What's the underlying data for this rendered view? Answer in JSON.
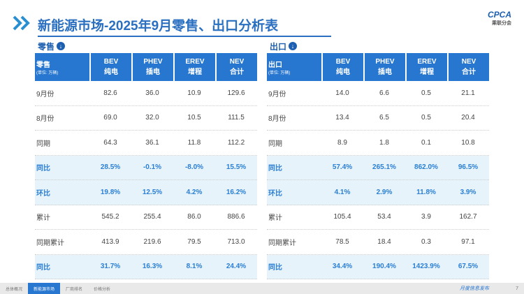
{
  "header": {
    "title": "新能源市场-2025年9月零售、出口分析表",
    "logo": "CPCA",
    "logo_sub": "乘联分会"
  },
  "tables": [
    {
      "label": "零售",
      "unit": "(单位: 万辆)",
      "columns": [
        {
          "code": "BEV",
          "name": "纯电"
        },
        {
          "code": "PHEV",
          "name": "插电"
        },
        {
          "code": "EREV",
          "name": "增程"
        },
        {
          "code": "NEV",
          "name": "合计"
        }
      ],
      "rows": [
        {
          "name": "9月份",
          "cells": [
            "82.6",
            "36.0",
            "10.9",
            "129.6"
          ],
          "highlight": false
        },
        {
          "name": "8月份",
          "cells": [
            "69.0",
            "32.0",
            "10.5",
            "111.5"
          ],
          "highlight": false
        },
        {
          "name": "同期",
          "cells": [
            "64.3",
            "36.1",
            "11.8",
            "112.2"
          ],
          "highlight": false
        },
        {
          "name": "同比",
          "cells": [
            "28.5%",
            "-0.1%",
            "-8.0%",
            "15.5%"
          ],
          "highlight": true
        },
        {
          "name": "环比",
          "cells": [
            "19.8%",
            "12.5%",
            "4.2%",
            "16.2%"
          ],
          "highlight": true
        },
        {
          "name": "累计",
          "cells": [
            "545.2",
            "255.4",
            "86.0",
            "886.6"
          ],
          "highlight": false
        },
        {
          "name": "同期累计",
          "cells": [
            "413.9",
            "219.6",
            "79.5",
            "713.0"
          ],
          "highlight": false
        },
        {
          "name": "同比",
          "cells": [
            "31.7%",
            "16.3%",
            "8.1%",
            "24.4%"
          ],
          "highlight": true
        }
      ]
    },
    {
      "label": "出口",
      "unit": "(单位: 万辆)",
      "columns": [
        {
          "code": "BEV",
          "name": "纯电"
        },
        {
          "code": "PHEV",
          "name": "插电"
        },
        {
          "code": "EREV",
          "name": "增程"
        },
        {
          "code": "NEV",
          "name": "合计"
        }
      ],
      "rows": [
        {
          "name": "9月份",
          "cells": [
            "14.0",
            "6.6",
            "0.5",
            "21.1"
          ],
          "highlight": false
        },
        {
          "name": "8月份",
          "cells": [
            "13.4",
            "6.5",
            "0.5",
            "20.4"
          ],
          "highlight": false
        },
        {
          "name": "同期",
          "cells": [
            "8.9",
            "1.8",
            "0.1",
            "10.8"
          ],
          "highlight": false
        },
        {
          "name": "同比",
          "cells": [
            "57.4%",
            "265.1%",
            "862.0%",
            "96.5%"
          ],
          "highlight": true
        },
        {
          "name": "环比",
          "cells": [
            "4.1%",
            "2.9%",
            "11.8%",
            "3.9%"
          ],
          "highlight": true
        },
        {
          "name": "累计",
          "cells": [
            "105.4",
            "53.4",
            "3.9",
            "162.7"
          ],
          "highlight": false
        },
        {
          "name": "同期累计",
          "cells": [
            "78.5",
            "18.4",
            "0.3",
            "97.1"
          ],
          "highlight": false
        },
        {
          "name": "同比",
          "cells": [
            "34.4%",
            "190.4%",
            "1423.9%",
            "67.5%"
          ],
          "highlight": true
        }
      ]
    }
  ],
  "footer": {
    "tabs": [
      "总体概况",
      "新能源市场",
      "厂商排名",
      "价格分析"
    ],
    "active": 1,
    "note": "月度信息发布",
    "page": "7"
  }
}
